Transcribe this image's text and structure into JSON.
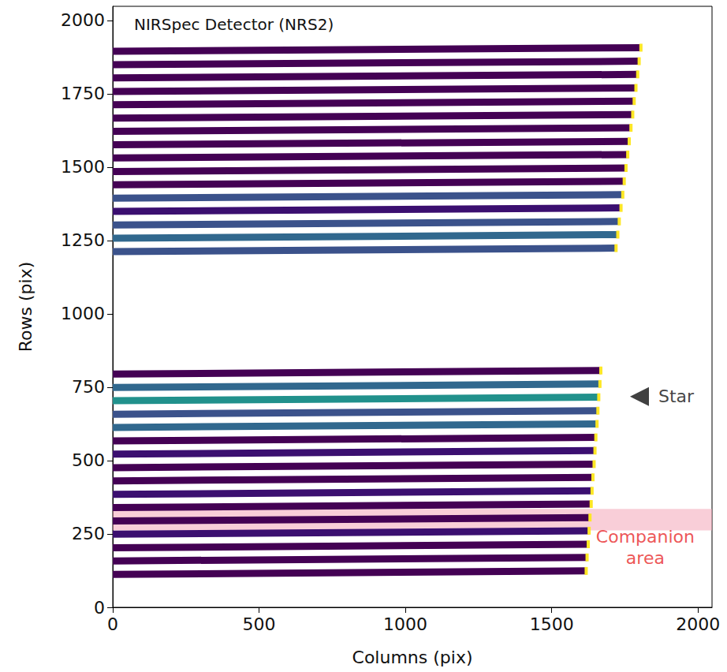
{
  "chart_data": {
    "type": "line",
    "title": "NIRSpec Detector (NRS2)",
    "x_label": "Columns (pix)",
    "y_label": "Rows (pix)",
    "xlim": [
      0,
      2048
    ],
    "ylim": [
      0,
      2048
    ],
    "xticks": [
      0,
      500,
      1000,
      1500,
      2000
    ],
    "yticks": [
      0,
      250,
      500,
      750,
      1000,
      1250,
      1500,
      1750,
      2000
    ],
    "grid": false,
    "series": [
      {
        "x": [
          0,
          1618
        ],
        "values": [
          112,
          124
        ],
        "color": "#440154"
      },
      {
        "x": [
          0,
          1621
        ],
        "values": [
          158,
          170
        ],
        "color": "#440154"
      },
      {
        "x": [
          0,
          1625
        ],
        "values": [
          203,
          215
        ],
        "color": "#440154"
      },
      {
        "x": [
          0,
          1628
        ],
        "values": [
          249,
          261
        ],
        "color": "#3b0f70"
      },
      {
        "x": [
          0,
          1631
        ],
        "values": [
          294,
          306
        ],
        "color": "#440154"
      },
      {
        "x": [
          0,
          1635
        ],
        "values": [
          340,
          352
        ],
        "color": "#440154"
      },
      {
        "x": [
          0,
          1638
        ],
        "values": [
          385,
          397
        ],
        "color": "#3b0f70"
      },
      {
        "x": [
          0,
          1641
        ],
        "values": [
          431,
          443
        ],
        "color": "#440154"
      },
      {
        "x": [
          0,
          1645
        ],
        "values": [
          476,
          488
        ],
        "color": "#440154"
      },
      {
        "x": [
          0,
          1648
        ],
        "values": [
          522,
          534
        ],
        "color": "#3b0f70"
      },
      {
        "x": [
          0,
          1651
        ],
        "values": [
          567,
          579
        ],
        "color": "#440154"
      },
      {
        "x": [
          0,
          1655
        ],
        "values": [
          613,
          625
        ],
        "color": "#31688e"
      },
      {
        "x": [
          0,
          1658
        ],
        "values": [
          658,
          670
        ],
        "color": "#3b528b"
      },
      {
        "x": [
          0,
          1661
        ],
        "values": [
          704,
          716
        ],
        "color": "#21918c"
      },
      {
        "x": [
          0,
          1665
        ],
        "values": [
          749,
          761
        ],
        "color": "#31688e"
      },
      {
        "x": [
          0,
          1668
        ],
        "values": [
          795,
          807
        ],
        "color": "#440154"
      },
      {
        "x": [
          0,
          1720
        ],
        "values": [
          1212,
          1224
        ],
        "color": "#3b528b"
      },
      {
        "x": [
          0,
          1726
        ],
        "values": [
          1258,
          1270
        ],
        "color": "#31688e"
      },
      {
        "x": [
          0,
          1731
        ],
        "values": [
          1303,
          1315
        ],
        "color": "#3b528b"
      },
      {
        "x": [
          0,
          1737
        ],
        "values": [
          1349,
          1361
        ],
        "color": "#3b0f70"
      },
      {
        "x": [
          0,
          1743
        ],
        "values": [
          1394,
          1406
        ],
        "color": "#3b528b"
      },
      {
        "x": [
          0,
          1748
        ],
        "values": [
          1440,
          1452
        ],
        "color": "#440154"
      },
      {
        "x": [
          0,
          1754
        ],
        "values": [
          1485,
          1497
        ],
        "color": "#440154"
      },
      {
        "x": [
          0,
          1760
        ],
        "values": [
          1531,
          1543
        ],
        "color": "#440154"
      },
      {
        "x": [
          0,
          1765
        ],
        "values": [
          1576,
          1588
        ],
        "color": "#440154"
      },
      {
        "x": [
          0,
          1771
        ],
        "values": [
          1622,
          1634
        ],
        "color": "#440154"
      },
      {
        "x": [
          0,
          1777
        ],
        "values": [
          1667,
          1679
        ],
        "color": "#440154"
      },
      {
        "x": [
          0,
          1782
        ],
        "values": [
          1713,
          1725
        ],
        "color": "#440154"
      },
      {
        "x": [
          0,
          1788
        ],
        "values": [
          1758,
          1770
        ],
        "color": "#440154"
      },
      {
        "x": [
          0,
          1794
        ],
        "values": [
          1804,
          1816
        ],
        "color": "#440154"
      },
      {
        "x": [
          0,
          1799
        ],
        "values": [
          1849,
          1861
        ],
        "color": "#440154"
      },
      {
        "x": [
          0,
          1805
        ],
        "values": [
          1895,
          1907
        ],
        "color": "#440154"
      }
    ],
    "regions": [
      {
        "xlim": [
          0,
          2048
        ],
        "ylim": [
          262,
          335
        ],
        "color": "#f4a6b8"
      }
    ],
    "annotations": [
      {
        "text": "Star",
        "x": 1800,
        "y": 718,
        "marker": "triangle",
        "color": "#111111"
      },
      {
        "text": "Companion area",
        "x": 1820,
        "y": 205,
        "marker": "none",
        "color": "#e8292a"
      }
    ]
  }
}
